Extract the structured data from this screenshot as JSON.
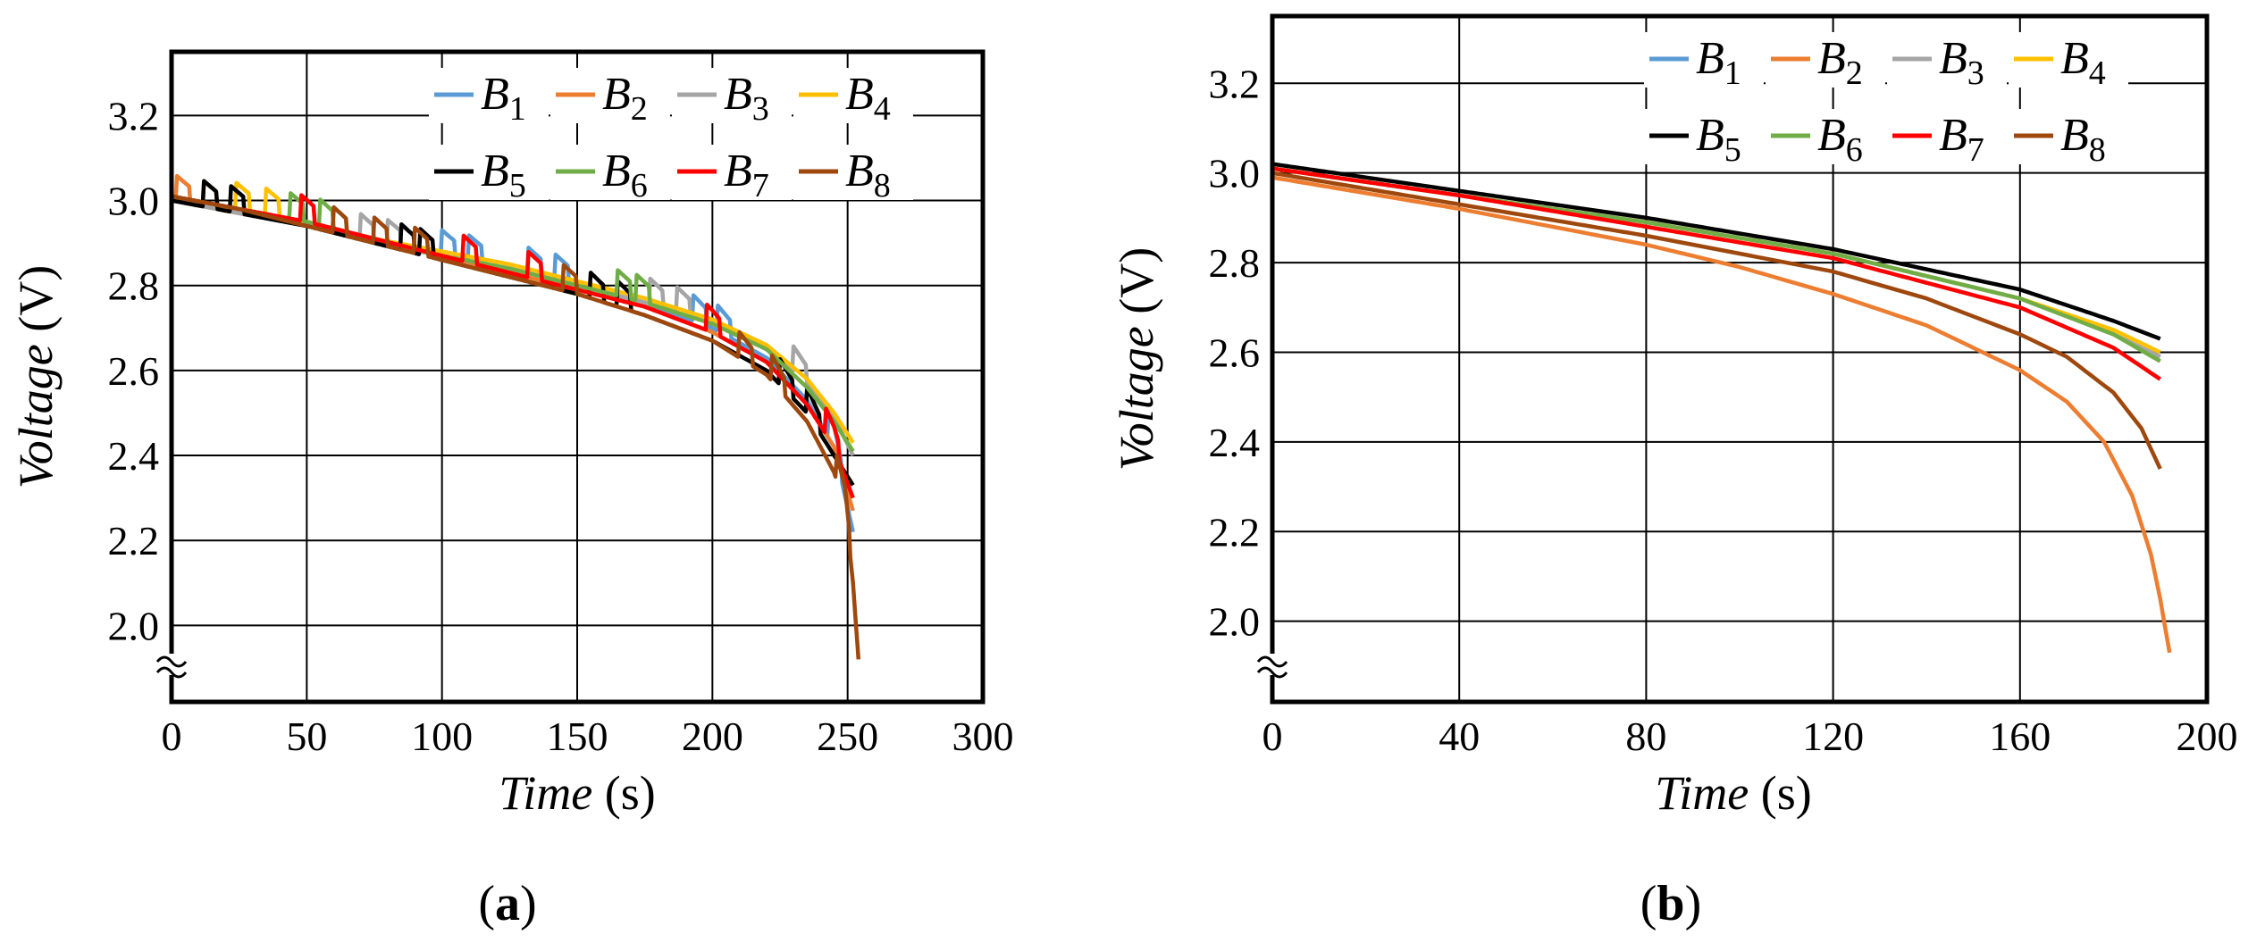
{
  "chart_data": [
    {
      "type": "line",
      "panel_label": "(a)",
      "panel_letter": "a",
      "xlabel": "Time (s)",
      "xlabel_italic": "Time",
      "xlabel_unit": "(s)",
      "ylabel": "Voltage (V)",
      "ylabel_italic": "Voltage",
      "ylabel_unit": "(V)",
      "xlim": [
        0,
        300
      ],
      "ylim": [
        1.82,
        3.35
      ],
      "xticks": [
        "0",
        "50",
        "100",
        "150",
        "200",
        "250",
        "300"
      ],
      "yticks": [
        "2.0",
        "2.2",
        "2.4",
        "2.6",
        "2.8",
        "3.0",
        "3.2"
      ],
      "grid": true,
      "axis_break": true,
      "legend_position": "top-right",
      "series": [
        {
          "name": "B1",
          "label_base": "B",
          "label_sub": "1",
          "color": "#5b9bd5",
          "pulse_times": [
            100,
            110,
            132,
            142,
            193,
            202,
            243
          ],
          "x": [
            0,
            25,
            50,
            75,
            100,
            125,
            150,
            175,
            200,
            220,
            235,
            245,
            252
          ],
          "y": [
            3.01,
            2.98,
            2.95,
            2.91,
            2.87,
            2.84,
            2.8,
            2.76,
            2.7,
            2.63,
            2.53,
            2.42,
            2.22
          ]
        },
        {
          "name": "B2",
          "label_base": "B",
          "label_sub": "2",
          "color": "#ed7d31",
          "pulse_times": [
            2,
            12
          ],
          "x": [
            0,
            25,
            50,
            75,
            100,
            125,
            150,
            175,
            200,
            220,
            235,
            245,
            252
          ],
          "y": [
            3.0,
            2.97,
            2.94,
            2.9,
            2.87,
            2.83,
            2.79,
            2.75,
            2.69,
            2.62,
            2.52,
            2.42,
            2.27
          ]
        },
        {
          "name": "B3",
          "label_base": "B",
          "label_sub": "3",
          "color": "#a5a5a5",
          "pulse_times": [
            60,
            70,
            80,
            177,
            187,
            230
          ],
          "x": [
            0,
            25,
            50,
            75,
            100,
            125,
            150,
            175,
            200,
            220,
            235,
            245,
            252
          ],
          "y": [
            3.0,
            2.97,
            2.94,
            2.9,
            2.87,
            2.84,
            2.8,
            2.76,
            2.71,
            2.65,
            2.57,
            2.49,
            2.4
          ]
        },
        {
          "name": "B4",
          "label_base": "B",
          "label_sub": "4",
          "color": "#ffc000",
          "pulse_times": [
            24,
            35
          ],
          "x": [
            0,
            25,
            50,
            75,
            100,
            125,
            150,
            175,
            200,
            220,
            235,
            245,
            252
          ],
          "y": [
            3.01,
            2.98,
            2.95,
            2.91,
            2.88,
            2.85,
            2.81,
            2.77,
            2.72,
            2.66,
            2.58,
            2.5,
            2.43
          ]
        },
        {
          "name": "B5",
          "label_base": "B",
          "label_sub": "5",
          "color": "#000000",
          "pulse_times": [
            12,
            22,
            85,
            92,
            155,
            165,
            225,
            235
          ],
          "x": [
            0,
            25,
            50,
            75,
            100,
            125,
            150,
            175,
            200,
            220,
            235,
            245,
            252
          ],
          "y": [
            3.0,
            2.97,
            2.94,
            2.9,
            2.86,
            2.82,
            2.78,
            2.73,
            2.67,
            2.6,
            2.5,
            2.4,
            2.33
          ]
        },
        {
          "name": "B6",
          "label_base": "B",
          "label_sub": "6",
          "color": "#70ad47",
          "pulse_times": [
            44,
            55,
            165,
            172
          ],
          "x": [
            0,
            25,
            50,
            75,
            100,
            125,
            150,
            175,
            200,
            220,
            235,
            245,
            252
          ],
          "y": [
            3.01,
            2.98,
            2.95,
            2.91,
            2.87,
            2.84,
            2.8,
            2.76,
            2.71,
            2.65,
            2.56,
            2.48,
            2.41
          ]
        },
        {
          "name": "B7",
          "label_base": "B",
          "label_sub": "7",
          "color": "#ff0000",
          "pulse_times": [
            48,
            108,
            132,
            198,
            242
          ],
          "x": [
            0,
            25,
            50,
            75,
            100,
            125,
            150,
            175,
            200,
            220,
            235,
            245,
            252
          ],
          "y": [
            3.01,
            2.98,
            2.95,
            2.91,
            2.87,
            2.83,
            2.79,
            2.75,
            2.69,
            2.62,
            2.52,
            2.42,
            2.3
          ]
        },
        {
          "name": "B8",
          "label_base": "B",
          "label_sub": "8",
          "color": "#9e480e",
          "pulse_times": [
            60,
            75,
            90,
            145,
            210,
            222,
            246
          ],
          "x": [
            0,
            25,
            50,
            75,
            100,
            125,
            150,
            175,
            200,
            220,
            235,
            245,
            249,
            252,
            254
          ],
          "y": [
            3.01,
            2.98,
            2.94,
            2.9,
            2.86,
            2.82,
            2.78,
            2.73,
            2.67,
            2.59,
            2.48,
            2.36,
            2.28,
            2.1,
            1.92
          ]
        }
      ]
    },
    {
      "type": "line",
      "panel_label": "(b)",
      "panel_letter": "b",
      "xlabel": "Time (s)",
      "xlabel_italic": "Time",
      "xlabel_unit": "(s)",
      "ylabel": "Voltage (V)",
      "ylabel_italic": "Voltage",
      "ylabel_unit": "(V)",
      "xlim": [
        0,
        200
      ],
      "ylim": [
        1.82,
        3.35
      ],
      "xticks": [
        "0",
        "40",
        "80",
        "120",
        "160",
        "200"
      ],
      "yticks": [
        "2.0",
        "2.2",
        "2.4",
        "2.6",
        "2.8",
        "3.0",
        "3.2"
      ],
      "grid": true,
      "axis_break": true,
      "legend_position": "top-right",
      "series": [
        {
          "name": "B1",
          "label_base": "B",
          "label_sub": "1",
          "color": "#5b9bd5",
          "x": [
            0,
            40,
            80,
            120,
            160,
            180,
            190
          ],
          "y": [
            3.01,
            2.95,
            2.89,
            2.82,
            2.72,
            2.64,
            2.59
          ]
        },
        {
          "name": "B2",
          "label_base": "B",
          "label_sub": "2",
          "color": "#ed7d31",
          "x": [
            0,
            40,
            80,
            100,
            120,
            140,
            160,
            170,
            178,
            184,
            188,
            190,
            192
          ],
          "y": [
            2.99,
            2.92,
            2.84,
            2.79,
            2.73,
            2.66,
            2.56,
            2.49,
            2.4,
            2.28,
            2.15,
            2.05,
            1.93
          ]
        },
        {
          "name": "B3",
          "label_base": "B",
          "label_sub": "3",
          "color": "#a5a5a5",
          "x": [
            0,
            40,
            80,
            120,
            160,
            180,
            190
          ],
          "y": [
            3.01,
            2.95,
            2.89,
            2.82,
            2.72,
            2.64,
            2.59
          ]
        },
        {
          "name": "B4",
          "label_base": "B",
          "label_sub": "4",
          "color": "#ffc000",
          "x": [
            0,
            40,
            80,
            120,
            160,
            180,
            190
          ],
          "y": [
            3.01,
            2.95,
            2.89,
            2.82,
            2.72,
            2.65,
            2.6
          ]
        },
        {
          "name": "B5",
          "label_base": "B",
          "label_sub": "5",
          "color": "#000000",
          "x": [
            0,
            40,
            80,
            120,
            160,
            180,
            190
          ],
          "y": [
            3.02,
            2.96,
            2.9,
            2.83,
            2.74,
            2.67,
            2.63
          ]
        },
        {
          "name": "B6",
          "label_base": "B",
          "label_sub": "6",
          "color": "#70ad47",
          "x": [
            0,
            40,
            80,
            120,
            160,
            180,
            190
          ],
          "y": [
            3.01,
            2.95,
            2.89,
            2.82,
            2.72,
            2.64,
            2.58
          ]
        },
        {
          "name": "B7",
          "label_base": "B",
          "label_sub": "7",
          "color": "#ff0000",
          "x": [
            0,
            40,
            80,
            120,
            160,
            180,
            190
          ],
          "y": [
            3.01,
            2.95,
            2.88,
            2.81,
            2.7,
            2.61,
            2.54
          ]
        },
        {
          "name": "B8",
          "label_base": "B",
          "label_sub": "8",
          "color": "#9e480e",
          "x": [
            0,
            40,
            80,
            120,
            140,
            160,
            170,
            180,
            186,
            190
          ],
          "y": [
            3.0,
            2.93,
            2.86,
            2.78,
            2.72,
            2.64,
            2.59,
            2.51,
            2.43,
            2.34
          ]
        }
      ]
    }
  ]
}
